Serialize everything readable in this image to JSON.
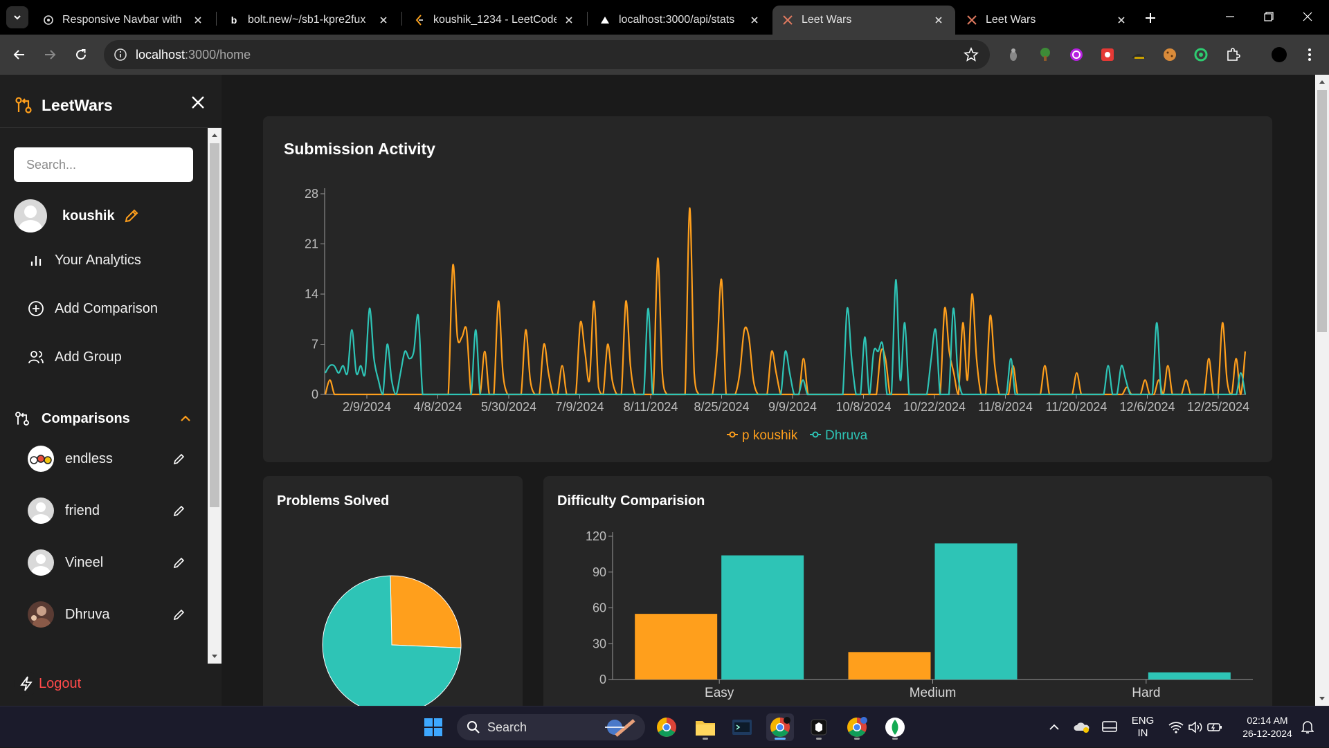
{
  "browser": {
    "tabs": [
      {
        "title": "Responsive Navbar with Ha",
        "active": false
      },
      {
        "title": "bolt.new/~/sb1-kpre2fux",
        "active": false
      },
      {
        "title": "koushik_1234 - LeetCode P",
        "active": false
      },
      {
        "title": "localhost:3000/api/stats",
        "active": false
      },
      {
        "title": "Leet Wars",
        "active": true
      },
      {
        "title": "Leet Wars",
        "active": false
      }
    ],
    "url_host": "localhost",
    "url_path": ":3000/home"
  },
  "sidebar": {
    "brand": "LeetWars",
    "search_placeholder": "Search...",
    "user_name": "koushik",
    "menu": [
      {
        "label": "Your Analytics",
        "icon": "bar-chart-icon"
      },
      {
        "label": "Add Comparison",
        "icon": "plus-circle-icon"
      },
      {
        "label": "Add Group",
        "icon": "users-icon"
      }
    ],
    "comparisons_title": "Comparisons",
    "comparisons": [
      {
        "name": "endless"
      },
      {
        "name": "friend"
      },
      {
        "name": "Vineel"
      },
      {
        "name": "Dhruva"
      }
    ],
    "logout_label": "Logout"
  },
  "submission_activity": {
    "title": "Submission Activity",
    "chart_data": {
      "type": "line",
      "x_ticks": [
        "2/9/2024",
        "4/8/2024",
        "5/30/2024",
        "7/9/2024",
        "8/11/2024",
        "8/25/2024",
        "9/9/2024",
        "10/8/2024",
        "10/22/2024",
        "11/8/2024",
        "11/20/2024",
        "12/6/2024",
        "12/25/2024"
      ],
      "ylim": [
        0,
        28
      ],
      "y_ticks": [
        0,
        7,
        14,
        21,
        28
      ],
      "series": [
        {
          "name": "p koushik",
          "color": "#ff9f1c",
          "values": [
            0,
            2,
            0,
            0,
            0,
            0,
            0,
            0,
            0,
            0,
            0,
            0,
            0,
            0,
            0,
            0,
            0,
            0,
            0,
            0,
            0,
            0,
            0,
            0,
            0,
            0,
            0,
            0,
            18,
            8,
            8,
            9,
            0,
            0,
            0,
            6,
            0,
            0,
            13,
            3,
            0,
            0,
            0,
            0,
            9,
            2,
            0,
            0,
            7,
            3,
            0,
            0,
            4,
            0,
            0,
            0,
            10,
            6,
            2,
            13,
            1,
            0,
            7,
            2,
            0,
            0,
            13,
            4,
            0,
            0,
            0,
            0,
            0,
            19,
            3,
            0,
            0,
            0,
            0,
            0,
            26,
            3,
            0,
            0,
            0,
            0,
            6,
            16,
            0,
            0,
            0,
            3,
            9,
            8,
            2,
            0,
            0,
            0,
            6,
            3,
            0,
            0,
            0,
            0,
            0,
            5,
            0,
            0,
            0,
            0,
            0,
            0,
            0,
            0,
            0,
            0,
            0,
            0,
            0,
            0,
            0,
            0,
            6,
            5,
            0,
            0,
            0,
            0,
            0,
            0,
            0,
            0,
            0,
            0,
            0,
            0,
            12,
            6,
            3,
            0,
            10,
            2,
            14,
            5,
            0,
            0,
            11,
            4,
            0,
            0,
            0,
            4,
            0,
            0,
            0,
            0,
            0,
            0,
            4,
            0,
            0,
            0,
            0,
            0,
            0,
            3,
            0,
            0,
            0,
            0,
            0,
            0,
            0,
            0,
            0,
            0,
            1,
            0,
            0,
            0,
            2,
            0,
            0,
            2,
            0,
            4,
            0,
            0,
            0,
            2,
            0,
            0,
            0,
            0,
            5,
            0,
            0,
            10,
            2,
            0,
            5,
            0,
            6
          ]
        },
        {
          "name": "Dhruva",
          "color": "#2ec4b6",
          "values": [
            3,
            4,
            4,
            3,
            4,
            3,
            9,
            3,
            4,
            3,
            12,
            5,
            2,
            0,
            7,
            2,
            0,
            3,
            6,
            5,
            6,
            11,
            0,
            0,
            0,
            0,
            0,
            0,
            0,
            0,
            0,
            0,
            0,
            0,
            9,
            0,
            0,
            0,
            0,
            0,
            0,
            0,
            0,
            0,
            0,
            0,
            0,
            0,
            0,
            0,
            0,
            0,
            0,
            0,
            0,
            0,
            0,
            0,
            0,
            0,
            0,
            0,
            0,
            0,
            0,
            0,
            0,
            0,
            0,
            0,
            0,
            0,
            0,
            12,
            0,
            0,
            0,
            0,
            0,
            0,
            0,
            0,
            0,
            0,
            0,
            0,
            0,
            0,
            0,
            0,
            0,
            0,
            0,
            0,
            0,
            0,
            0,
            0,
            0,
            0,
            0,
            0,
            0,
            0,
            6,
            3,
            0,
            0,
            2,
            0,
            0,
            0,
            0,
            0,
            0,
            0,
            0,
            0,
            12,
            5,
            0,
            0,
            8,
            0,
            6,
            6,
            7,
            0,
            0,
            16,
            2,
            10,
            0,
            0,
            0,
            0,
            0,
            5,
            9,
            0,
            0,
            0,
            12,
            3,
            0,
            0,
            0,
            0,
            0,
            0,
            0,
            0,
            0,
            0,
            0,
            5,
            0,
            0,
            0,
            0,
            0,
            0,
            0,
            0,
            0,
            0,
            0,
            0,
            0,
            0,
            0,
            0,
            0,
            0,
            0,
            0,
            0,
            4,
            0,
            0,
            4,
            2,
            0,
            0,
            0,
            0,
            0,
            0,
            10,
            0,
            0,
            0,
            0,
            0,
            0,
            0,
            0,
            0,
            0,
            0,
            0,
            0,
            0,
            0,
            0,
            0,
            0,
            3,
            0
          ]
        }
      ]
    }
  },
  "problems_solved": {
    "title": "Problems Solved",
    "chart_data": {
      "type": "pie",
      "slices": [
        {
          "label": "p koushik",
          "value": 26,
          "color": "#ff9f1c"
        },
        {
          "label": "Dhruva",
          "value": 74,
          "color": "#2ec4b6"
        }
      ]
    }
  },
  "difficulty": {
    "title": "Difficulty Comparision",
    "chart_data": {
      "type": "bar",
      "categories": [
        "Easy",
        "Medium",
        "Hard"
      ],
      "ylim": [
        0,
        120
      ],
      "y_ticks": [
        0,
        30,
        60,
        90,
        120
      ],
      "series": [
        {
          "name": "p koushik",
          "color": "#ff9f1c",
          "values": [
            55,
            23,
            0
          ]
        },
        {
          "name": "Dhruva",
          "color": "#2ec4b6",
          "values": [
            104,
            114,
            6
          ]
        }
      ]
    }
  },
  "taskbar": {
    "search_label": "Search",
    "lang_top": "ENG",
    "lang_bottom": "IN",
    "time": "02:14 AM",
    "date": "26-12-2024"
  }
}
